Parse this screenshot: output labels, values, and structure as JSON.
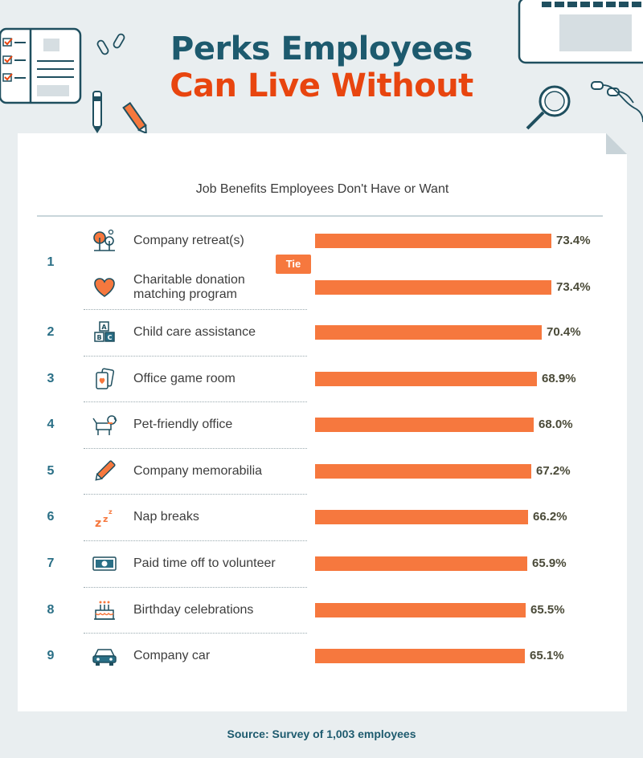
{
  "header": {
    "title_line1": "Perks Employees",
    "title_line2": "Can Live Without"
  },
  "chart_data": {
    "type": "bar",
    "orientation": "horizontal",
    "title": "Job Benefits Employees Don't Have or Want",
    "value_suffix": "%",
    "rows": [
      {
        "rank": "1",
        "label": "Company retreat(s)",
        "value": 73.4,
        "value_label": "73.4%",
        "icon": "trees-icon"
      },
      {
        "rank": "",
        "label": "Charitable donation matching program",
        "label_lines": [
          "Charitable donation",
          "matching program"
        ],
        "value": 73.4,
        "value_label": "73.4%",
        "icon": "heart-icon"
      },
      {
        "rank": "2",
        "label": "Child care assistance",
        "value": 70.4,
        "value_label": "70.4%",
        "icon": "abc-blocks-icon"
      },
      {
        "rank": "3",
        "label": "Office game room",
        "value": 68.9,
        "value_label": "68.9%",
        "icon": "playing-cards-icon"
      },
      {
        "rank": "4",
        "label": "Pet-friendly office",
        "value": 68.0,
        "value_label": "68.0%",
        "icon": "dog-icon"
      },
      {
        "rank": "5",
        "label": "Company memorabilia",
        "value": 67.2,
        "value_label": "67.2%",
        "icon": "pen-icon"
      },
      {
        "rank": "6",
        "label": "Nap breaks",
        "value": 66.2,
        "value_label": "66.2%",
        "icon": "zzz-icon"
      },
      {
        "rank": "7",
        "label": "Paid time off to volunteer",
        "value": 65.9,
        "value_label": "65.9%",
        "icon": "cash-icon"
      },
      {
        "rank": "8",
        "label": "Birthday celebrations",
        "value": 65.5,
        "value_label": "65.5%",
        "icon": "cake-icon"
      },
      {
        "rank": "9",
        "label": "Company car",
        "value": 65.1,
        "value_label": "65.1%",
        "icon": "car-icon"
      }
    ],
    "tie_badge": "Tie",
    "tie_rank": "1",
    "grid": false,
    "colors": {
      "bar": "#f6783e",
      "rank": "#2a6f86",
      "title_dark": "#1d5a6e",
      "title_accent": "#e8450f"
    }
  },
  "footer": {
    "source": "Source: Survey of 1,003 employees"
  }
}
